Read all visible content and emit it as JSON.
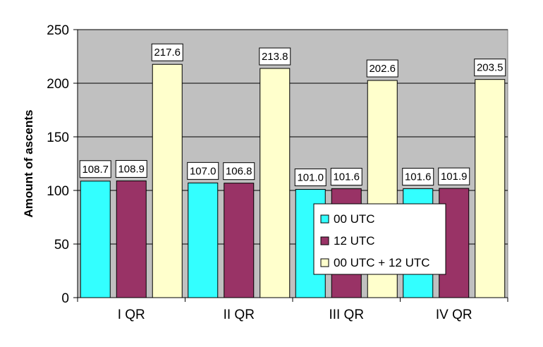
{
  "chart_data": {
    "type": "bar",
    "categories": [
      "I QR",
      "II QR",
      "III QR",
      "IV QR"
    ],
    "series": [
      {
        "name": "00 UTC",
        "values": [
          108.7,
          107.0,
          101.0,
          101.6
        ],
        "labels": [
          "108.7",
          "107.0",
          "101.0",
          "101.6"
        ],
        "color": "#33ffff"
      },
      {
        "name": "12 UTC",
        "values": [
          108.9,
          106.8,
          101.6,
          101.9
        ],
        "labels": [
          "108.9",
          "106.8",
          "101.6",
          "101.9"
        ],
        "color": "#993366"
      },
      {
        "name": "00 UTC + 12 UTC",
        "values": [
          217.6,
          213.8,
          202.6,
          203.5
        ],
        "labels": [
          "217.6",
          "213.8",
          "202.6",
          "203.5"
        ],
        "color": "#ffffcc"
      }
    ],
    "title": "",
    "xlabel": "",
    "ylabel": "Amount of ascents",
    "ylim": [
      0,
      250
    ],
    "yticks": [
      "0",
      "50",
      "100",
      "150",
      "200",
      "250"
    ],
    "grid": true,
    "plot_background": "#c0c0c0",
    "legend_position": "inside-lower-right"
  }
}
